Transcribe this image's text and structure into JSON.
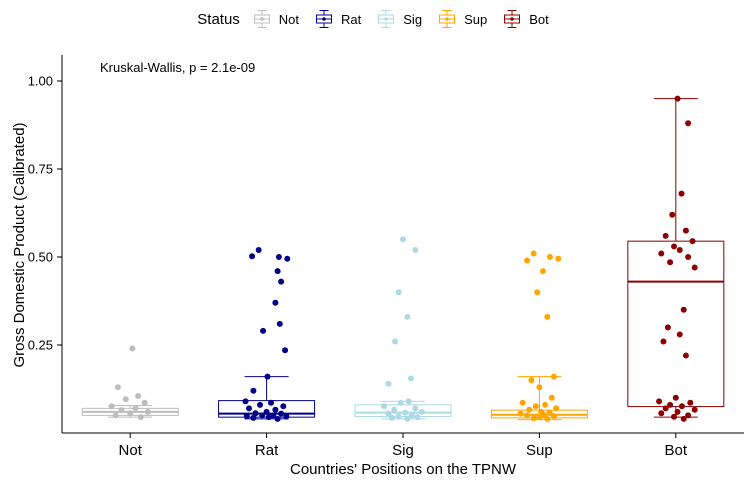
{
  "legend": {
    "title": "Status",
    "items": [
      {
        "label": "Not",
        "color": "#bdbdbd"
      },
      {
        "label": "Rat",
        "color": "#00008b"
      },
      {
        "label": "Sig",
        "color": "#add8e6"
      },
      {
        "label": "Sup",
        "color": "#ffa500"
      },
      {
        "label": "Bot",
        "color": "#8b0000"
      }
    ]
  },
  "annotation": "Kruskal-Wallis, p = 2.1e-09",
  "chart_data": {
    "type": "boxplot",
    "title": "",
    "xlabel": "Countries' Positions on the TPNW",
    "ylabel": "Gross Domestic Product (Calibrated)",
    "ylim": [
      0,
      1.0
    ],
    "yticks": [
      0.25,
      0.5,
      0.75,
      1.0
    ],
    "ytick_labels": [
      "0.25",
      "0.50",
      "0.75",
      "1.00"
    ],
    "grid": false,
    "legend_position": "top",
    "annotation": "Kruskal-Wallis, p = 2.1e-09",
    "categories": [
      "Not",
      "Rat",
      "Sig",
      "Sup",
      "Bot"
    ],
    "series": [
      {
        "name": "Not",
        "color": "#bdbdbd",
        "box": {
          "whisker_low": 0.045,
          "q1": 0.05,
          "median": 0.06,
          "q3": 0.07,
          "whisker_high": 0.078
        },
        "points": [
          [
            0.05,
            0.24
          ],
          [
            -0.28,
            0.13
          ],
          [
            0.18,
            0.105
          ],
          [
            -0.1,
            0.096
          ],
          [
            0.33,
            0.086
          ],
          [
            -0.42,
            0.076
          ],
          [
            0.12,
            0.07
          ],
          [
            -0.2,
            0.065
          ],
          [
            0.4,
            0.06
          ],
          [
            0.0,
            0.056
          ],
          [
            -0.33,
            0.05
          ],
          [
            0.24,
            0.045
          ]
        ]
      },
      {
        "name": "Rat",
        "color": "#00008b",
        "box": {
          "whisker_low": 0.04,
          "q1": 0.045,
          "median": 0.055,
          "q3": 0.092,
          "whisker_high": 0.16
        },
        "points": [
          [
            -0.18,
            0.52
          ],
          [
            -0.33,
            0.502
          ],
          [
            0.28,
            0.5
          ],
          [
            0.47,
            0.495
          ],
          [
            0.25,
            0.46
          ],
          [
            0.33,
            0.43
          ],
          [
            0.2,
            0.37
          ],
          [
            0.3,
            0.31
          ],
          [
            -0.08,
            0.29
          ],
          [
            0.42,
            0.235
          ],
          [
            0.02,
            0.16
          ],
          [
            -0.3,
            0.12
          ],
          [
            -0.48,
            0.09
          ],
          [
            0.1,
            0.086
          ],
          [
            -0.15,
            0.08
          ],
          [
            0.38,
            0.076
          ],
          [
            -0.4,
            0.07
          ],
          [
            0.2,
            0.066
          ],
          [
            0.0,
            0.06
          ],
          [
            -0.25,
            0.056
          ],
          [
            0.33,
            0.055
          ],
          [
            -0.1,
            0.05
          ],
          [
            0.15,
            0.05
          ],
          [
            -0.45,
            0.048
          ],
          [
            0.45,
            0.047
          ],
          [
            0.05,
            0.045
          ],
          [
            -0.3,
            0.043
          ],
          [
            0.25,
            0.04
          ]
        ]
      },
      {
        "name": "Sig",
        "color": "#add8e6",
        "box": {
          "whisker_low": 0.04,
          "q1": 0.047,
          "median": 0.058,
          "q3": 0.08,
          "whisker_high": 0.09
        },
        "points": [
          [
            0.0,
            0.55
          ],
          [
            0.28,
            0.52
          ],
          [
            -0.1,
            0.4
          ],
          [
            0.1,
            0.33
          ],
          [
            -0.18,
            0.26
          ],
          [
            0.18,
            0.155
          ],
          [
            -0.33,
            0.14
          ],
          [
            0.13,
            0.09
          ],
          [
            -0.05,
            0.086
          ],
          [
            -0.43,
            0.076
          ],
          [
            0.28,
            0.07
          ],
          [
            -0.2,
            0.066
          ],
          [
            0.43,
            0.06
          ],
          [
            0.05,
            0.058
          ],
          [
            -0.33,
            0.055
          ],
          [
            0.2,
            0.05
          ],
          [
            -0.1,
            0.048
          ],
          [
            0.33,
            0.045
          ],
          [
            -0.25,
            0.043
          ],
          [
            0.1,
            0.04
          ]
        ]
      },
      {
        "name": "Sup",
        "color": "#ffa500",
        "box": {
          "whisker_low": 0.038,
          "q1": 0.043,
          "median": 0.052,
          "q3": 0.065,
          "whisker_high": 0.16
        },
        "points": [
          [
            -0.13,
            0.51
          ],
          [
            0.24,
            0.5
          ],
          [
            0.43,
            0.495
          ],
          [
            -0.28,
            0.49
          ],
          [
            0.08,
            0.46
          ],
          [
            -0.05,
            0.4
          ],
          [
            0.18,
            0.33
          ],
          [
            0.33,
            0.16
          ],
          [
            -0.18,
            0.15
          ],
          [
            0.0,
            0.13
          ],
          [
            0.28,
            0.1
          ],
          [
            -0.38,
            0.086
          ],
          [
            0.13,
            0.08
          ],
          [
            -0.08,
            0.076
          ],
          [
            0.38,
            0.07
          ],
          [
            -0.23,
            0.066
          ],
          [
            0.04,
            0.06
          ],
          [
            0.23,
            0.058
          ],
          [
            -0.43,
            0.055
          ],
          [
            0.09,
            0.052
          ],
          [
            -0.28,
            0.05
          ],
          [
            0.33,
            0.048
          ],
          [
            0.0,
            0.045
          ],
          [
            -0.13,
            0.042
          ],
          [
            0.18,
            0.04
          ]
        ]
      },
      {
        "name": "Bot",
        "color": "#8b0000",
        "box": {
          "whisker_low": 0.045,
          "q1": 0.075,
          "median": 0.43,
          "q3": 0.545,
          "whisker_high": 0.95
        },
        "points": [
          [
            0.04,
            0.95
          ],
          [
            0.28,
            0.88
          ],
          [
            0.13,
            0.68
          ],
          [
            -0.08,
            0.62
          ],
          [
            0.23,
            0.575
          ],
          [
            -0.23,
            0.56
          ],
          [
            0.38,
            0.545
          ],
          [
            -0.04,
            0.53
          ],
          [
            0.09,
            0.52
          ],
          [
            -0.33,
            0.51
          ],
          [
            0.28,
            0.5
          ],
          [
            -0.13,
            0.485
          ],
          [
            0.43,
            0.47
          ],
          [
            0.18,
            0.35
          ],
          [
            -0.18,
            0.3
          ],
          [
            0.09,
            0.28
          ],
          [
            -0.28,
            0.26
          ],
          [
            0.23,
            0.22
          ],
          [
            0.0,
            0.1
          ],
          [
            -0.38,
            0.09
          ],
          [
            0.33,
            0.086
          ],
          [
            -0.13,
            0.08
          ],
          [
            0.14,
            0.076
          ],
          [
            -0.23,
            0.07
          ],
          [
            0.43,
            0.066
          ],
          [
            0.04,
            0.06
          ],
          [
            -0.33,
            0.056
          ],
          [
            0.28,
            0.05
          ],
          [
            -0.04,
            0.046
          ],
          [
            0.18,
            0.04
          ]
        ]
      }
    ]
  }
}
